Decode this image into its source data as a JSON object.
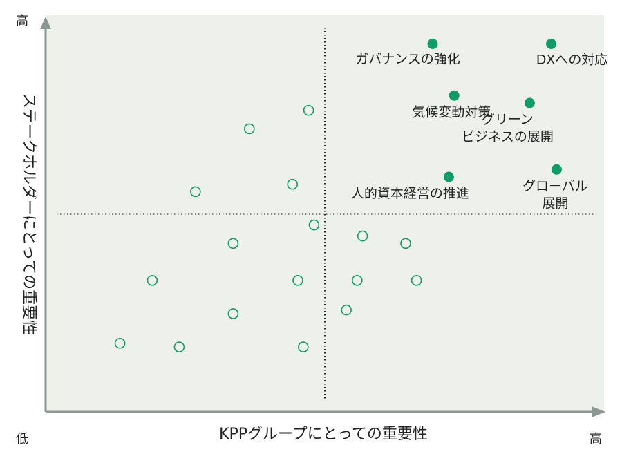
{
  "chart_data": {
    "type": "scatter",
    "title": "",
    "xlabel": "KPPグループにとっての重要性",
    "ylabel": "ステークホルダーにとっての重要性",
    "x_high": "高",
    "y_high": "高",
    "origin_low": "低",
    "xlim": [
      0,
      100
    ],
    "ylim": [
      0,
      100
    ],
    "divider_x": 50,
    "divider_y": 50,
    "background_color": "#eef0eb",
    "axis_color": "#8c9993",
    "accent_color": "#109b68",
    "series": [
      {
        "marker": "filled",
        "points": [
          {
            "x": 70,
            "y": 96,
            "label": [
              "ガバナンスの強化"
            ]
          },
          {
            "x": 92,
            "y": 96,
            "label": [
              "DXへの対応"
            ]
          },
          {
            "x": 74,
            "y": 82,
            "label": [
              "気候変動対策"
            ]
          },
          {
            "x": 88,
            "y": 80,
            "label": [
              "グリーン",
              "ビジネスの展開"
            ]
          },
          {
            "x": 73,
            "y": 60,
            "label": [
              "人的資本経営の推進"
            ]
          },
          {
            "x": 93,
            "y": 62,
            "label": [
              "グローバル",
              "展開"
            ]
          }
        ]
      },
      {
        "marker": "hollow",
        "points": [
          {
            "x": 47,
            "y": 78
          },
          {
            "x": 36,
            "y": 73
          },
          {
            "x": 26,
            "y": 56
          },
          {
            "x": 44,
            "y": 58
          },
          {
            "x": 48,
            "y": 47
          },
          {
            "x": 57,
            "y": 44
          },
          {
            "x": 33,
            "y": 42
          },
          {
            "x": 65,
            "y": 42
          },
          {
            "x": 18,
            "y": 32
          },
          {
            "x": 45,
            "y": 32
          },
          {
            "x": 56,
            "y": 32
          },
          {
            "x": 67,
            "y": 32
          },
          {
            "x": 33,
            "y": 23
          },
          {
            "x": 54,
            "y": 24
          },
          {
            "x": 12,
            "y": 15
          },
          {
            "x": 23,
            "y": 14
          },
          {
            "x": 46,
            "y": 14
          }
        ]
      }
    ]
  }
}
